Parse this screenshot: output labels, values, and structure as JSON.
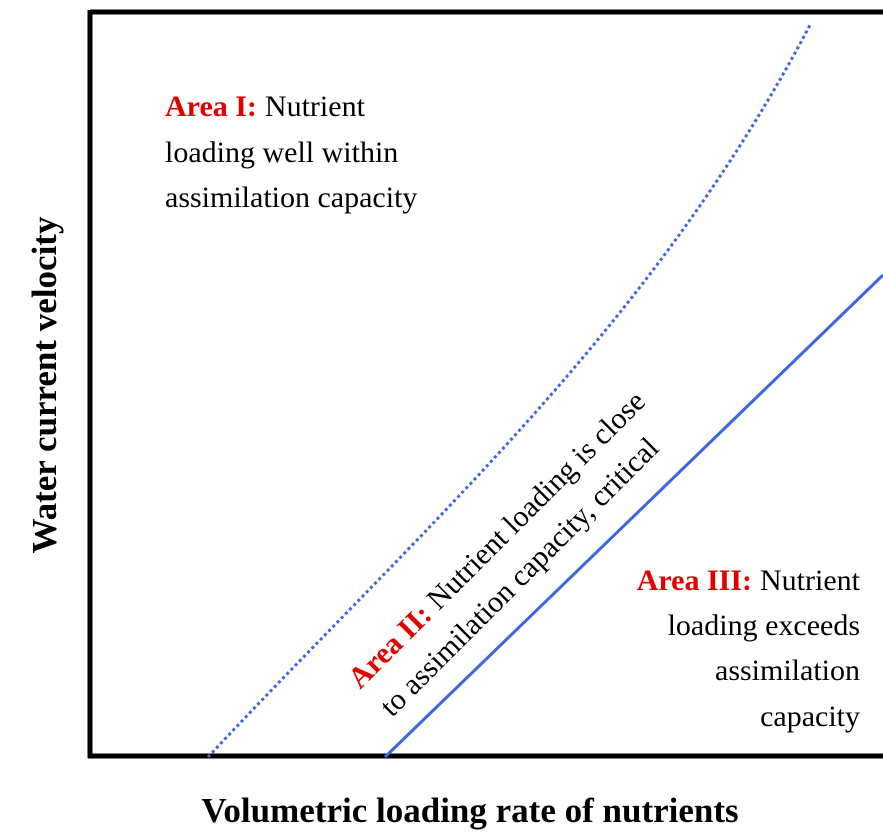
{
  "y_axis_label": "Water current velocity",
  "x_axis_label": "Volumetric loading rate of nutrients",
  "areas": [
    {
      "label": "Area I:",
      "lines": [
        "Nutrient",
        "loading well within",
        "assimilation capacity"
      ]
    },
    {
      "label": "Area II:",
      "lines": [
        "Nutrient loading is close",
        "to assimilation capacity, critical"
      ]
    },
    {
      "label": "Area III:",
      "lines": [
        "Nutrient",
        "loading exceeds",
        "assimilation",
        "capacity"
      ]
    }
  ]
}
